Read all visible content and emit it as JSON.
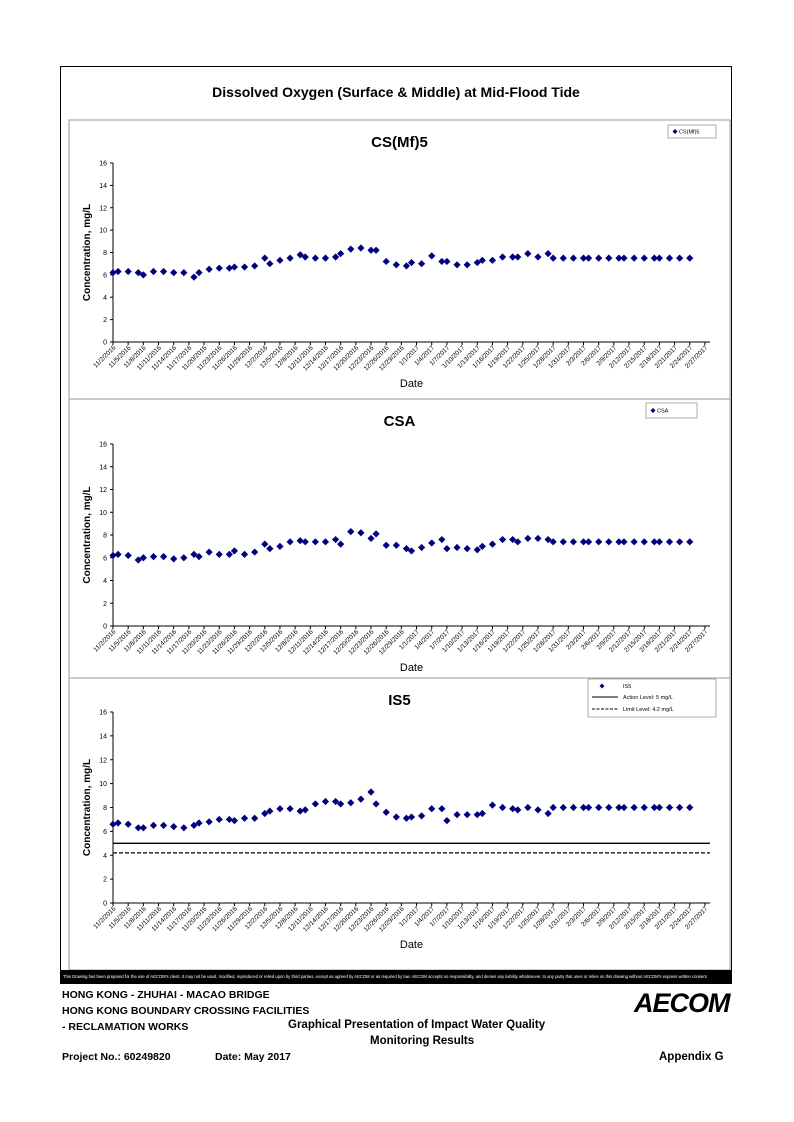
{
  "title": "Dissolved Oxygen (Surface & Middle) at Mid-Flood Tide",
  "disclaimer": "This Drawing has been prepared for the use of AECOM's client. It may not be used, modified, reproduced or relied upon by third parties, except as agreed by AECOM or as required by law. AECOM accepts no responsibility, and denies any liability whatsoever, to any party that uses or relies on this drawing without AECOM's express written consent.",
  "footer": {
    "line1": "HONG KONG - ZHUHAI - MACAO BRIDGE",
    "line2": "HONG KONG BOUNDARY CROSSING FACILITIES",
    "line3": "- RECLAMATION WORKS",
    "caption_line1": "Graphical Presentation of Impact Water Quality",
    "caption_line2": "Monitoring Results",
    "project": "Project No.: 60249820",
    "date": "Date: May 2017",
    "appendix": "Appendix G",
    "logo": "AECOM"
  },
  "colors": {
    "marker": "#00007f",
    "line": "#000000"
  },
  "chart_data": [
    {
      "type": "scatter",
      "title": "CS(Mf)5",
      "xlabel": "Date",
      "ylabel": "Concentration, mg/L",
      "ylim": [
        0,
        16
      ],
      "yticks": [
        "0",
        "2",
        "4",
        "6",
        "8",
        "10",
        "12",
        "14",
        "16"
      ],
      "xticks": [
        "11/2/2016",
        "11/5/2016",
        "11/8/2016",
        "11/11/2016",
        "11/14/2016",
        "11/17/2016",
        "11/20/2016",
        "11/23/2016",
        "11/26/2016",
        "11/29/2016",
        "12/2/2016",
        "12/5/2016",
        "12/8/2016",
        "12/11/2016",
        "12/14/2016",
        "12/17/2016",
        "12/20/2016",
        "12/23/2016",
        "12/26/2016",
        "12/29/2016",
        "1/1/2017",
        "1/4/2017",
        "1/7/2017",
        "1/10/2017",
        "1/13/2017",
        "1/16/2017",
        "1/19/2017",
        "1/22/2017",
        "1/25/2017",
        "1/28/2017",
        "1/31/2017",
        "2/3/2017",
        "2/6/2017",
        "2/9/2017",
        "2/12/2017",
        "2/15/2017",
        "2/18/2017",
        "2/21/2017",
        "2/24/2017",
        "2/27/2017"
      ],
      "legend": "top-right",
      "series": [
        {
          "name": "CS(Mf)5",
          "x": [
            "11/2/2016",
            "11/3/2016",
            "11/5/2016",
            "11/7/2016",
            "11/8/2016",
            "11/10/2016",
            "11/12/2016",
            "11/14/2016",
            "11/16/2016",
            "11/18/2016",
            "11/19/2016",
            "11/21/2016",
            "11/23/2016",
            "11/25/2016",
            "11/26/2016",
            "11/28/2016",
            "11/30/2016",
            "12/2/2016",
            "12/3/2016",
            "12/5/2016",
            "12/7/2016",
            "12/9/2016",
            "12/10/2016",
            "12/12/2016",
            "12/14/2016",
            "12/16/2016",
            "12/17/2016",
            "12/19/2016",
            "12/21/2016",
            "12/23/2016",
            "12/24/2016",
            "12/26/2016",
            "12/28/2016",
            "12/30/2016",
            "12/31/2016",
            "1/2/2017",
            "1/4/2017",
            "1/6/2017",
            "1/7/2017",
            "1/9/2017",
            "1/11/2017",
            "1/13/2017",
            "1/14/2017",
            "1/16/2017",
            "1/18/2017",
            "1/20/2017",
            "1/21/2017",
            "1/23/2017",
            "1/25/2017",
            "1/27/2017",
            "1/28/2017",
            "1/30/2017",
            "2/1/2017",
            "2/3/2017",
            "2/4/2017",
            "2/6/2017",
            "2/8/2017",
            "2/10/2017",
            "2/11/2017",
            "2/13/2017",
            "2/15/2017",
            "2/17/2017",
            "2/18/2017",
            "2/20/2017",
            "2/22/2017",
            "2/24/2017"
          ],
          "y": [
            6.2,
            6.3,
            6.3,
            6.2,
            6.0,
            6.3,
            6.3,
            6.2,
            6.2,
            5.8,
            6.2,
            6.5,
            6.6,
            6.6,
            6.7,
            6.7,
            6.8,
            7.5,
            7.0,
            7.3,
            7.5,
            7.8,
            7.6,
            7.5,
            7.5,
            7.6,
            7.9,
            8.3,
            8.4,
            8.2,
            8.2,
            7.2,
            6.9,
            6.8,
            7.1,
            7.0,
            7.7,
            7.2,
            7.2,
            6.9,
            6.9,
            7.1,
            7.3,
            7.3,
            7.6,
            7.6,
            7.6,
            7.9,
            7.6,
            7.9,
            7.5,
            7.5,
            7.5,
            7.5,
            7.5,
            7.5,
            7.5,
            7.5,
            7.5,
            7.5,
            7.5,
            7.5,
            7.5,
            7.5,
            7.5,
            7.5
          ]
        }
      ]
    },
    {
      "type": "scatter",
      "title": "CSA",
      "xlabel": "Date",
      "ylabel": "Concentration, mg/L",
      "ylim": [
        0,
        16
      ],
      "yticks": [
        "0",
        "2",
        "4",
        "6",
        "8",
        "10",
        "12",
        "14",
        "16"
      ],
      "xticks": [
        "11/2/2016",
        "11/5/2016",
        "11/8/2016",
        "11/11/2016",
        "11/14/2016",
        "11/17/2016",
        "11/20/2016",
        "11/23/2016",
        "11/26/2016",
        "11/29/2016",
        "12/2/2016",
        "12/5/2016",
        "12/8/2016",
        "12/11/2016",
        "12/14/2016",
        "12/17/2016",
        "12/20/2016",
        "12/23/2016",
        "12/26/2016",
        "12/29/2016",
        "1/1/2017",
        "1/4/2017",
        "1/7/2017",
        "1/10/2017",
        "1/13/2017",
        "1/16/2017",
        "1/19/2017",
        "1/22/2017",
        "1/25/2017",
        "1/28/2017",
        "1/31/2017",
        "2/3/2017",
        "2/6/2017",
        "2/9/2017",
        "2/12/2017",
        "2/15/2017",
        "2/18/2017",
        "2/21/2017",
        "2/24/2017",
        "2/27/2017"
      ],
      "legend": "top-right",
      "series": [
        {
          "name": "CSA",
          "x": [
            "11/2/2016",
            "11/3/2016",
            "11/5/2016",
            "11/7/2016",
            "11/8/2016",
            "11/10/2016",
            "11/12/2016",
            "11/14/2016",
            "11/16/2016",
            "11/18/2016",
            "11/19/2016",
            "11/21/2016",
            "11/23/2016",
            "11/25/2016",
            "11/26/2016",
            "11/28/2016",
            "11/30/2016",
            "12/2/2016",
            "12/3/2016",
            "12/5/2016",
            "12/7/2016",
            "12/9/2016",
            "12/10/2016",
            "12/12/2016",
            "12/14/2016",
            "12/16/2016",
            "12/17/2016",
            "12/19/2016",
            "12/21/2016",
            "12/23/2016",
            "12/24/2016",
            "12/26/2016",
            "12/28/2016",
            "12/30/2016",
            "12/31/2016",
            "1/2/2017",
            "1/4/2017",
            "1/6/2017",
            "1/7/2017",
            "1/9/2017",
            "1/11/2017",
            "1/13/2017",
            "1/14/2017",
            "1/16/2017",
            "1/18/2017",
            "1/20/2017",
            "1/21/2017",
            "1/23/2017",
            "1/25/2017",
            "1/27/2017",
            "1/28/2017",
            "1/30/2017",
            "2/1/2017",
            "2/3/2017",
            "2/4/2017",
            "2/6/2017",
            "2/8/2017",
            "2/10/2017",
            "2/11/2017",
            "2/13/2017",
            "2/15/2017",
            "2/17/2017",
            "2/18/2017",
            "2/20/2017",
            "2/22/2017",
            "2/24/2017"
          ],
          "y": [
            6.2,
            6.3,
            6.2,
            5.8,
            6.0,
            6.1,
            6.1,
            5.9,
            6.0,
            6.3,
            6.1,
            6.5,
            6.3,
            6.3,
            6.6,
            6.3,
            6.5,
            7.2,
            6.8,
            7.0,
            7.4,
            7.5,
            7.4,
            7.4,
            7.4,
            7.6,
            7.2,
            8.3,
            8.2,
            7.7,
            8.1,
            7.1,
            7.1,
            6.8,
            6.6,
            6.9,
            7.3,
            7.6,
            6.8,
            6.9,
            6.8,
            6.7,
            7.0,
            7.2,
            7.6,
            7.6,
            7.4,
            7.7,
            7.7,
            7.6,
            7.4,
            7.4,
            7.4,
            7.4,
            7.4,
            7.4,
            7.4,
            7.4,
            7.4,
            7.4,
            7.4,
            7.4,
            7.4,
            7.4,
            7.4,
            7.4
          ]
        }
      ]
    },
    {
      "type": "scatter",
      "title": "IS5",
      "xlabel": "Date",
      "ylabel": "Concentration, mg/L",
      "ylim": [
        0,
        16
      ],
      "yticks": [
        "0",
        "2",
        "4",
        "6",
        "8",
        "10",
        "12",
        "14",
        "16"
      ],
      "xticks": [
        "11/2/2016",
        "11/5/2016",
        "11/8/2016",
        "11/11/2016",
        "11/14/2016",
        "11/17/2016",
        "11/20/2016",
        "11/23/2016",
        "11/26/2016",
        "11/29/2016",
        "12/2/2016",
        "12/5/2016",
        "12/8/2016",
        "12/11/2016",
        "12/14/2016",
        "12/17/2016",
        "12/20/2016",
        "12/23/2016",
        "12/26/2016",
        "12/29/2016",
        "1/1/2017",
        "1/4/2017",
        "1/7/2017",
        "1/10/2017",
        "1/13/2017",
        "1/16/2017",
        "1/19/2017",
        "1/22/2017",
        "1/25/2017",
        "1/28/2017",
        "1/31/2017",
        "2/3/2017",
        "2/6/2017",
        "2/9/2017",
        "2/12/2017",
        "2/15/2017",
        "2/18/2017",
        "2/21/2017",
        "2/24/2017",
        "2/27/2017"
      ],
      "legend": "top-right",
      "series": [
        {
          "name": "IS5",
          "x": [
            "11/2/2016",
            "11/3/2016",
            "11/5/2016",
            "11/7/2016",
            "11/8/2016",
            "11/10/2016",
            "11/12/2016",
            "11/14/2016",
            "11/16/2016",
            "11/18/2016",
            "11/19/2016",
            "11/21/2016",
            "11/23/2016",
            "11/25/2016",
            "11/26/2016",
            "11/28/2016",
            "11/30/2016",
            "12/2/2016",
            "12/3/2016",
            "12/5/2016",
            "12/7/2016",
            "12/9/2016",
            "12/10/2016",
            "12/12/2016",
            "12/14/2016",
            "12/16/2016",
            "12/17/2016",
            "12/19/2016",
            "12/21/2016",
            "12/23/2016",
            "12/24/2016",
            "12/26/2016",
            "12/28/2016",
            "12/30/2016",
            "12/31/2016",
            "1/2/2017",
            "1/4/2017",
            "1/6/2017",
            "1/7/2017",
            "1/9/2017",
            "1/11/2017",
            "1/13/2017",
            "1/14/2017",
            "1/16/2017",
            "1/18/2017",
            "1/20/2017",
            "1/21/2017",
            "1/23/2017",
            "1/25/2017",
            "1/27/2017",
            "1/28/2017",
            "1/30/2017",
            "2/1/2017",
            "2/3/2017",
            "2/4/2017",
            "2/6/2017",
            "2/8/2017",
            "2/10/2017",
            "2/11/2017",
            "2/13/2017",
            "2/15/2017",
            "2/17/2017",
            "2/18/2017",
            "2/20/2017",
            "2/22/2017",
            "2/24/2017"
          ],
          "y": [
            6.6,
            6.7,
            6.6,
            6.3,
            6.3,
            6.5,
            6.5,
            6.4,
            6.3,
            6.5,
            6.7,
            6.8,
            7.0,
            7.0,
            6.9,
            7.1,
            7.1,
            7.5,
            7.7,
            7.9,
            7.9,
            7.7,
            7.8,
            8.3,
            8.5,
            8.5,
            8.3,
            8.4,
            8.7,
            9.3,
            8.3,
            7.6,
            7.2,
            7.1,
            7.2,
            7.3,
            7.9,
            7.9,
            6.9,
            7.4,
            7.4,
            7.4,
            7.5,
            8.2,
            8.0,
            7.9,
            7.8,
            8.0,
            7.8,
            7.5,
            8.0,
            8.0,
            8.0,
            8.0,
            8.0,
            8.0,
            8.0,
            8.0,
            8.0,
            8.0,
            8.0,
            8.0,
            8.0,
            8.0,
            8.0,
            8.0
          ]
        }
      ],
      "reference_lines": [
        {
          "label": "Action Level: 5 mg/L",
          "y": 5,
          "style": "solid"
        },
        {
          "label": "Limit Level: 4.2 mg/L",
          "y": 4.2,
          "style": "dashed"
        }
      ]
    }
  ]
}
